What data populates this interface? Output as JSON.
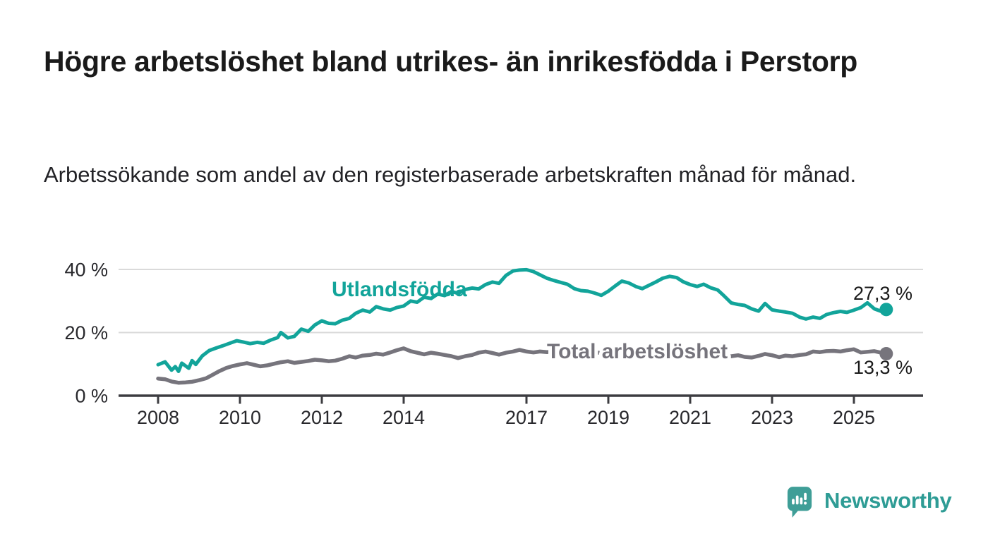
{
  "header": {
    "title": "Högre arbetslöshet bland utrikes- än inrikesfödda i Perstorp",
    "subtitle": "Arbetssökande som andel av den registerbaserade arbetskraften månad för månad."
  },
  "branding": {
    "logo_text": "Newsworthy",
    "logo_icon": "bar-chart-speech-bubble",
    "logo_color": "#2e9c95",
    "logo_icon_color": "#3f9e97"
  },
  "chart_data": {
    "type": "line",
    "title": "",
    "xlabel": "",
    "ylabel": "",
    "x_unit": "year (monthly observations)",
    "y_unit": "percent",
    "xlim": [
      2007.6,
      2026.7
    ],
    "ylim": [
      0,
      44.8
    ],
    "grid": "horizontal",
    "axis_color": "#3c3c40",
    "gridline_color": "#dadada",
    "tick_label_color": "#28282c",
    "y_ticks": [
      {
        "value": 0,
        "label": "0 %"
      },
      {
        "value": 20,
        "label": "20 %"
      },
      {
        "value": 40,
        "label": "40 %"
      }
    ],
    "x_ticks": [
      {
        "value": 2008,
        "label": "2008"
      },
      {
        "value": 2010,
        "label": "2010"
      },
      {
        "value": 2012,
        "label": "2012"
      },
      {
        "value": 2014,
        "label": "2014"
      },
      {
        "value": 2017,
        "label": "2017"
      },
      {
        "value": 2019,
        "label": "2019"
      },
      {
        "value": 2021,
        "label": "2021"
      },
      {
        "value": 2023,
        "label": "2023"
      },
      {
        "value": 2025,
        "label": "2025"
      }
    ],
    "series": [
      {
        "name": "Utlandsfödda",
        "color": "#12a49a",
        "end_value": 27.3,
        "end_label": "27,3 %",
        "points": [
          [
            2008.0,
            9.8
          ],
          [
            2008.17,
            10.7
          ],
          [
            2008.33,
            8.1
          ],
          [
            2008.42,
            9.2
          ],
          [
            2008.5,
            7.7
          ],
          [
            2008.58,
            10.3
          ],
          [
            2008.75,
            8.7
          ],
          [
            2008.83,
            11.1
          ],
          [
            2008.92,
            9.9
          ],
          [
            2009.08,
            12.6
          ],
          [
            2009.25,
            14.3
          ],
          [
            2009.42,
            15.1
          ],
          [
            2009.58,
            15.8
          ],
          [
            2009.75,
            16.6
          ],
          [
            2009.92,
            17.4
          ],
          [
            2010.08,
            17.0
          ],
          [
            2010.25,
            16.5
          ],
          [
            2010.42,
            16.9
          ],
          [
            2010.58,
            16.6
          ],
          [
            2010.75,
            17.6
          ],
          [
            2010.92,
            18.4
          ],
          [
            2011.0,
            20.0
          ],
          [
            2011.17,
            18.3
          ],
          [
            2011.33,
            18.8
          ],
          [
            2011.5,
            21.1
          ],
          [
            2011.67,
            20.4
          ],
          [
            2011.83,
            22.4
          ],
          [
            2012.0,
            23.7
          ],
          [
            2012.17,
            22.9
          ],
          [
            2012.33,
            22.8
          ],
          [
            2012.5,
            23.9
          ],
          [
            2012.67,
            24.5
          ],
          [
            2012.83,
            26.1
          ],
          [
            2013.0,
            27.1
          ],
          [
            2013.17,
            26.5
          ],
          [
            2013.33,
            28.2
          ],
          [
            2013.5,
            27.5
          ],
          [
            2013.67,
            27.1
          ],
          [
            2013.83,
            27.9
          ],
          [
            2014.0,
            28.4
          ],
          [
            2014.17,
            30.0
          ],
          [
            2014.33,
            29.6
          ],
          [
            2014.5,
            31.2
          ],
          [
            2014.67,
            30.8
          ],
          [
            2014.83,
            32.2
          ],
          [
            2015.0,
            31.7
          ],
          [
            2015.17,
            33.0
          ],
          [
            2015.33,
            32.4
          ],
          [
            2015.5,
            33.6
          ],
          [
            2015.67,
            34.1
          ],
          [
            2015.83,
            33.8
          ],
          [
            2016.0,
            35.2
          ],
          [
            2016.17,
            36.0
          ],
          [
            2016.33,
            35.6
          ],
          [
            2016.5,
            38.1
          ],
          [
            2016.67,
            39.5
          ],
          [
            2016.83,
            39.8
          ],
          [
            2017.0,
            39.9
          ],
          [
            2017.17,
            39.3
          ],
          [
            2017.33,
            38.3
          ],
          [
            2017.5,
            37.2
          ],
          [
            2017.67,
            36.5
          ],
          [
            2017.83,
            35.9
          ],
          [
            2018.0,
            35.3
          ],
          [
            2018.17,
            33.9
          ],
          [
            2018.33,
            33.3
          ],
          [
            2018.5,
            33.1
          ],
          [
            2018.67,
            32.5
          ],
          [
            2018.83,
            31.8
          ],
          [
            2019.0,
            33.1
          ],
          [
            2019.17,
            34.8
          ],
          [
            2019.33,
            36.3
          ],
          [
            2019.5,
            35.7
          ],
          [
            2019.67,
            34.6
          ],
          [
            2019.83,
            33.9
          ],
          [
            2020.0,
            35.0
          ],
          [
            2020.17,
            36.1
          ],
          [
            2020.33,
            37.2
          ],
          [
            2020.5,
            37.8
          ],
          [
            2020.67,
            37.4
          ],
          [
            2020.83,
            36.1
          ],
          [
            2021.0,
            35.2
          ],
          [
            2021.17,
            34.6
          ],
          [
            2021.33,
            35.3
          ],
          [
            2021.5,
            34.2
          ],
          [
            2021.67,
            33.5
          ],
          [
            2021.83,
            31.6
          ],
          [
            2022.0,
            29.4
          ],
          [
            2022.17,
            28.9
          ],
          [
            2022.33,
            28.6
          ],
          [
            2022.5,
            27.5
          ],
          [
            2022.67,
            26.8
          ],
          [
            2022.83,
            29.2
          ],
          [
            2023.0,
            27.2
          ],
          [
            2023.17,
            26.8
          ],
          [
            2023.33,
            26.5
          ],
          [
            2023.5,
            26.1
          ],
          [
            2023.67,
            24.9
          ],
          [
            2023.83,
            24.3
          ],
          [
            2024.0,
            24.9
          ],
          [
            2024.17,
            24.5
          ],
          [
            2024.33,
            25.7
          ],
          [
            2024.5,
            26.3
          ],
          [
            2024.67,
            26.7
          ],
          [
            2024.83,
            26.4
          ],
          [
            2025.0,
            27.1
          ],
          [
            2025.17,
            27.9
          ],
          [
            2025.33,
            29.4
          ],
          [
            2025.5,
            27.5
          ],
          [
            2025.67,
            26.7
          ],
          [
            2025.79,
            27.3
          ]
        ]
      },
      {
        "name": "Total arbetslöshet",
        "color": "#76747c",
        "end_value": 13.3,
        "end_label": "13,3 %",
        "points": [
          [
            2008.0,
            5.4
          ],
          [
            2008.17,
            5.2
          ],
          [
            2008.33,
            4.5
          ],
          [
            2008.5,
            4.1
          ],
          [
            2008.67,
            4.2
          ],
          [
            2008.83,
            4.4
          ],
          [
            2009.0,
            4.9
          ],
          [
            2009.17,
            5.5
          ],
          [
            2009.33,
            6.6
          ],
          [
            2009.5,
            7.8
          ],
          [
            2009.67,
            8.8
          ],
          [
            2009.83,
            9.4
          ],
          [
            2010.0,
            9.9
          ],
          [
            2010.17,
            10.3
          ],
          [
            2010.33,
            9.8
          ],
          [
            2010.5,
            9.3
          ],
          [
            2010.67,
            9.6
          ],
          [
            2010.83,
            10.1
          ],
          [
            2011.0,
            10.6
          ],
          [
            2011.17,
            10.9
          ],
          [
            2011.33,
            10.4
          ],
          [
            2011.5,
            10.7
          ],
          [
            2011.67,
            11.0
          ],
          [
            2011.83,
            11.4
          ],
          [
            2012.0,
            11.2
          ],
          [
            2012.17,
            10.9
          ],
          [
            2012.33,
            11.1
          ],
          [
            2012.5,
            11.7
          ],
          [
            2012.67,
            12.5
          ],
          [
            2012.83,
            12.1
          ],
          [
            2013.0,
            12.7
          ],
          [
            2013.17,
            12.9
          ],
          [
            2013.33,
            13.3
          ],
          [
            2013.5,
            13.0
          ],
          [
            2013.67,
            13.7
          ],
          [
            2013.83,
            14.4
          ],
          [
            2014.0,
            15.0
          ],
          [
            2014.17,
            14.1
          ],
          [
            2014.33,
            13.6
          ],
          [
            2014.5,
            13.1
          ],
          [
            2014.67,
            13.6
          ],
          [
            2014.83,
            13.3
          ],
          [
            2015.0,
            12.9
          ],
          [
            2015.17,
            12.5
          ],
          [
            2015.33,
            11.9
          ],
          [
            2015.5,
            12.5
          ],
          [
            2015.67,
            12.9
          ],
          [
            2015.83,
            13.6
          ],
          [
            2016.0,
            14.0
          ],
          [
            2016.17,
            13.5
          ],
          [
            2016.33,
            13.0
          ],
          [
            2016.5,
            13.6
          ],
          [
            2016.67,
            14.0
          ],
          [
            2016.83,
            14.5
          ],
          [
            2017.0,
            14.0
          ],
          [
            2017.17,
            13.7
          ],
          [
            2017.33,
            14.0
          ],
          [
            2017.5,
            13.8
          ],
          [
            2017.67,
            14.0
          ],
          [
            2017.83,
            13.9
          ],
          [
            2018.0,
            13.7
          ],
          [
            2018.17,
            13.9
          ],
          [
            2018.33,
            13.6
          ],
          [
            2018.5,
            13.8
          ],
          [
            2018.67,
            13.5
          ],
          [
            2018.83,
            13.7
          ],
          [
            2019.0,
            13.9
          ],
          [
            2019.17,
            13.6
          ],
          [
            2019.33,
            13.8
          ],
          [
            2019.5,
            14.0
          ],
          [
            2019.67,
            13.7
          ],
          [
            2019.83,
            13.9
          ],
          [
            2020.0,
            14.1
          ],
          [
            2020.17,
            14.4
          ],
          [
            2020.33,
            14.7
          ],
          [
            2020.5,
            14.3
          ],
          [
            2020.67,
            14.0
          ],
          [
            2020.83,
            13.8
          ],
          [
            2021.0,
            13.6
          ],
          [
            2021.17,
            13.3
          ],
          [
            2021.33,
            13.5
          ],
          [
            2021.5,
            13.1
          ],
          [
            2021.67,
            12.9
          ],
          [
            2021.83,
            12.7
          ],
          [
            2022.0,
            12.5
          ],
          [
            2022.17,
            12.8
          ],
          [
            2022.33,
            12.3
          ],
          [
            2022.5,
            12.1
          ],
          [
            2022.67,
            12.6
          ],
          [
            2022.83,
            13.2
          ],
          [
            2023.0,
            12.8
          ],
          [
            2023.17,
            12.2
          ],
          [
            2023.33,
            12.7
          ],
          [
            2023.5,
            12.5
          ],
          [
            2023.67,
            12.9
          ],
          [
            2023.83,
            13.1
          ],
          [
            2024.0,
            14.0
          ],
          [
            2024.17,
            13.8
          ],
          [
            2024.33,
            14.1
          ],
          [
            2024.5,
            14.2
          ],
          [
            2024.67,
            14.0
          ],
          [
            2024.83,
            14.4
          ],
          [
            2025.0,
            14.7
          ],
          [
            2025.17,
            13.7
          ],
          [
            2025.33,
            13.9
          ],
          [
            2025.5,
            14.1
          ],
          [
            2025.67,
            13.6
          ],
          [
            2025.79,
            13.3
          ]
        ]
      }
    ]
  }
}
